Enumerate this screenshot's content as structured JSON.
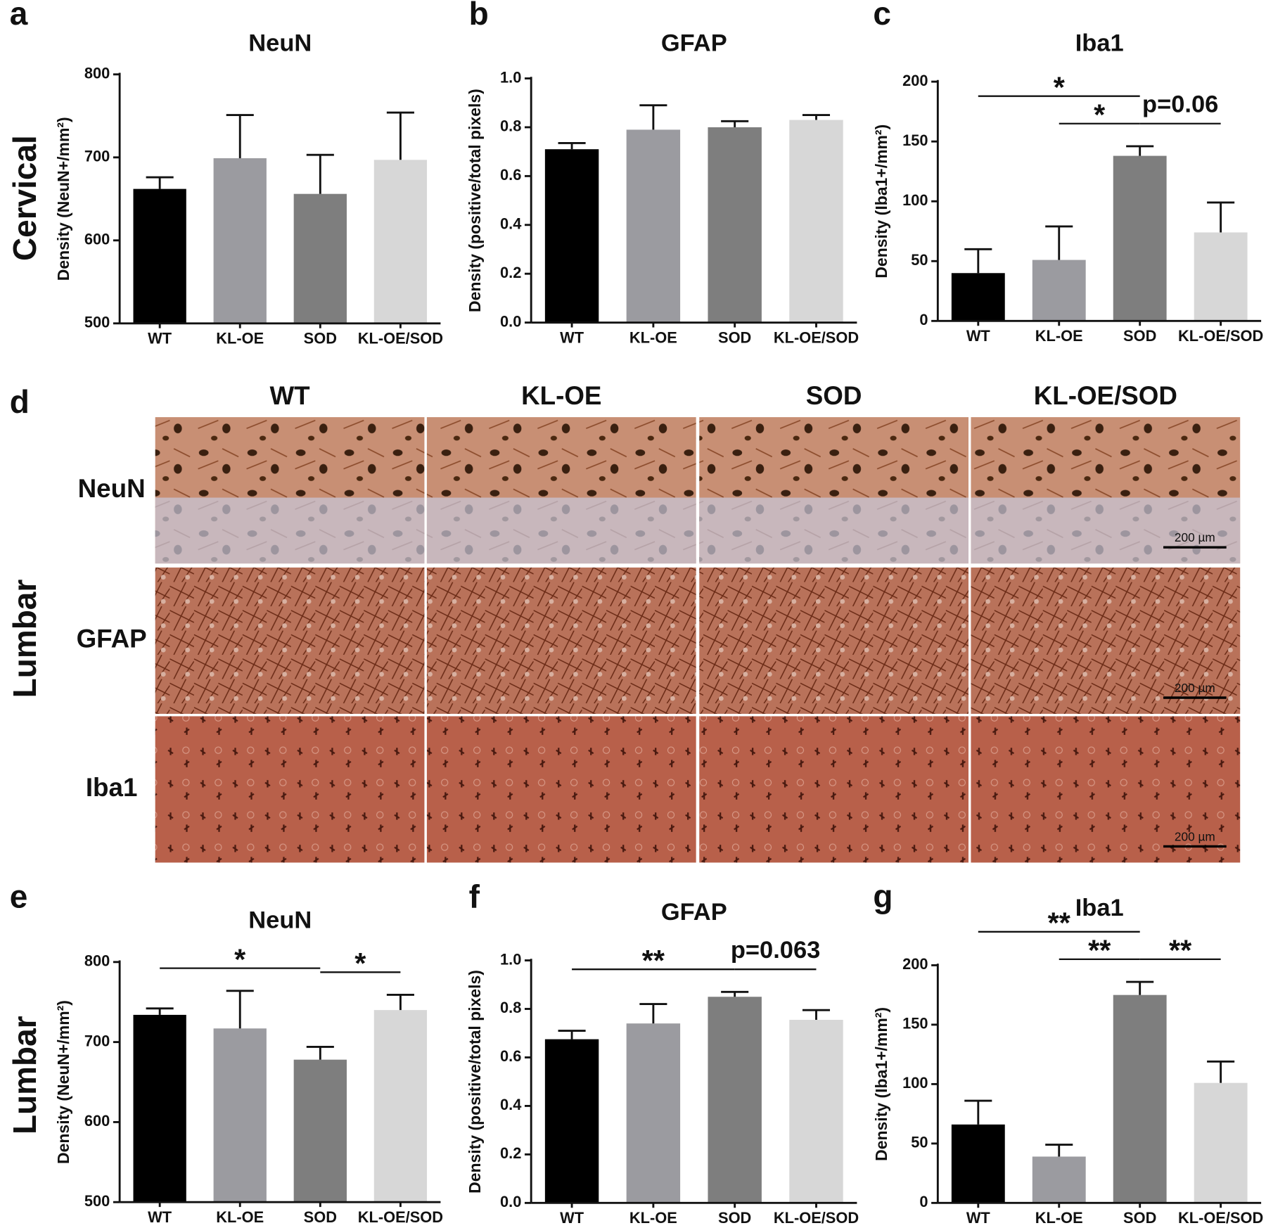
{
  "chart_data": [
    {
      "type": "bar",
      "panel": "a",
      "row_label": "Cervical",
      "title": "NeuN",
      "ylabel": "Density (NeuN+/mm²)",
      "categories": [
        "WT",
        "KL-OE",
        "SOD",
        "KL-OE/SOD"
      ],
      "values": [
        662,
        699,
        656,
        697
      ],
      "errors": [
        14,
        52,
        47,
        57
      ],
      "colors": [
        "#000000",
        "#9b9ba0",
        "#7e7e7e",
        "#d7d7d7"
      ],
      "ylim": [
        500,
        800
      ],
      "yticks": [
        500,
        600,
        700,
        800
      ],
      "annotations": []
    },
    {
      "type": "bar",
      "panel": "b",
      "title": "GFAP",
      "ylabel": "Density (positive/total pixels)",
      "categories": [
        "WT",
        "KL-OE",
        "SOD",
        "KL-OE/SOD"
      ],
      "values": [
        0.71,
        0.79,
        0.8,
        0.83
      ],
      "errors": [
        0.025,
        0.1,
        0.025,
        0.02
      ],
      "colors": [
        "#000000",
        "#9b9ba0",
        "#7e7e7e",
        "#d7d7d7"
      ],
      "ylim": [
        0,
        1
      ],
      "yticks": [
        {
          "value": 0,
          "label": "0.0"
        },
        0.2,
        0.4,
        0.6,
        0.8,
        {
          "value": 1,
          "label": "1.0"
        }
      ],
      "annotations": []
    },
    {
      "type": "bar",
      "panel": "c",
      "title": "Iba1",
      "ylabel": "Density (Iba1+/mm²)",
      "categories": [
        "WT",
        "KL-OE",
        "SOD",
        "KL-OE/SOD"
      ],
      "values": [
        40,
        51,
        138,
        74
      ],
      "errors": [
        20,
        28,
        8,
        25
      ],
      "colors": [
        "#000000",
        "#9b9ba0",
        "#7e7e7e",
        "#d7d7d7"
      ],
      "ylim": [
        0,
        200
      ],
      "yticks": [
        0,
        50,
        100,
        150,
        200
      ],
      "annotations": [
        {
          "from": "KL-OE",
          "to": "SOD",
          "text": "*"
        },
        {
          "from": "WT",
          "to": "SOD",
          "text": "*"
        },
        {
          "from": "SOD",
          "to": "KL-OE/SOD",
          "text": "p=0.06"
        }
      ]
    },
    {
      "type": "bar",
      "panel": "e",
      "row_label": "Lumbar",
      "title": "NeuN",
      "ylabel": "Density (NeuN+/mm²)",
      "categories": [
        "WT",
        "KL-OE",
        "SOD",
        "KL-OE/SOD"
      ],
      "values": [
        734,
        717,
        678,
        740
      ],
      "errors": [
        8,
        47,
        16,
        19
      ],
      "colors": [
        "#000000",
        "#9b9ba0",
        "#7e7e7e",
        "#d7d7d7"
      ],
      "ylim": [
        500,
        800
      ],
      "yticks": [
        500,
        600,
        700,
        800
      ],
      "annotations": [
        {
          "from": "WT",
          "to": "SOD",
          "text": "*"
        },
        {
          "from": "SOD",
          "to": "KL-OE/SOD",
          "text": "*"
        }
      ]
    },
    {
      "type": "bar",
      "panel": "f",
      "title": "GFAP",
      "ylabel": "Density (positive/total pixels)",
      "categories": [
        "WT",
        "KL-OE",
        "SOD",
        "KL-OE/SOD"
      ],
      "values": [
        0.675,
        0.74,
        0.85,
        0.755
      ],
      "errors": [
        0.035,
        0.08,
        0.02,
        0.04
      ],
      "colors": [
        "#000000",
        "#9b9ba0",
        "#7e7e7e",
        "#d7d7d7"
      ],
      "ylim": [
        0,
        1
      ],
      "yticks": [
        {
          "value": 0,
          "label": "0.0"
        },
        0.2,
        0.4,
        0.6,
        0.8,
        {
          "value": 1,
          "label": "1.0"
        }
      ],
      "annotations": [
        {
          "from": "WT",
          "to": "SOD",
          "text": "**"
        },
        {
          "from": "SOD",
          "to": "KL-OE/SOD",
          "text": "p=0.063"
        }
      ]
    },
    {
      "type": "bar",
      "panel": "g",
      "title": "Iba1",
      "ylabel": "Density (Iba1+/mm²)",
      "categories": [
        "WT",
        "KL-OE",
        "SOD",
        "KL-OE/SOD"
      ],
      "values": [
        66,
        39,
        175,
        101
      ],
      "errors": [
        20,
        10,
        11,
        18
      ],
      "colors": [
        "#000000",
        "#9b9ba0",
        "#7e7e7e",
        "#d7d7d7"
      ],
      "ylim": [
        0,
        200
      ],
      "yticks": [
        0,
        50,
        100,
        150,
        200
      ],
      "annotations": [
        {
          "from": "KL-OE",
          "to": "SOD",
          "text": "**"
        },
        {
          "from": "WT",
          "to": "SOD",
          "text": "**"
        },
        {
          "from": "SOD",
          "to": "KL-OE/SOD",
          "text": "**"
        }
      ]
    }
  ],
  "micrographs": {
    "panel": "d",
    "side_label": "Lumbar",
    "columns": [
      "WT",
      "KL-OE",
      "SOD",
      "KL-OE/SOD"
    ],
    "rows": [
      "NeuN",
      "GFAP",
      "Iba1"
    ],
    "scale_bars": [
      "200 µm",
      "200 µm",
      "200 µm"
    ]
  }
}
